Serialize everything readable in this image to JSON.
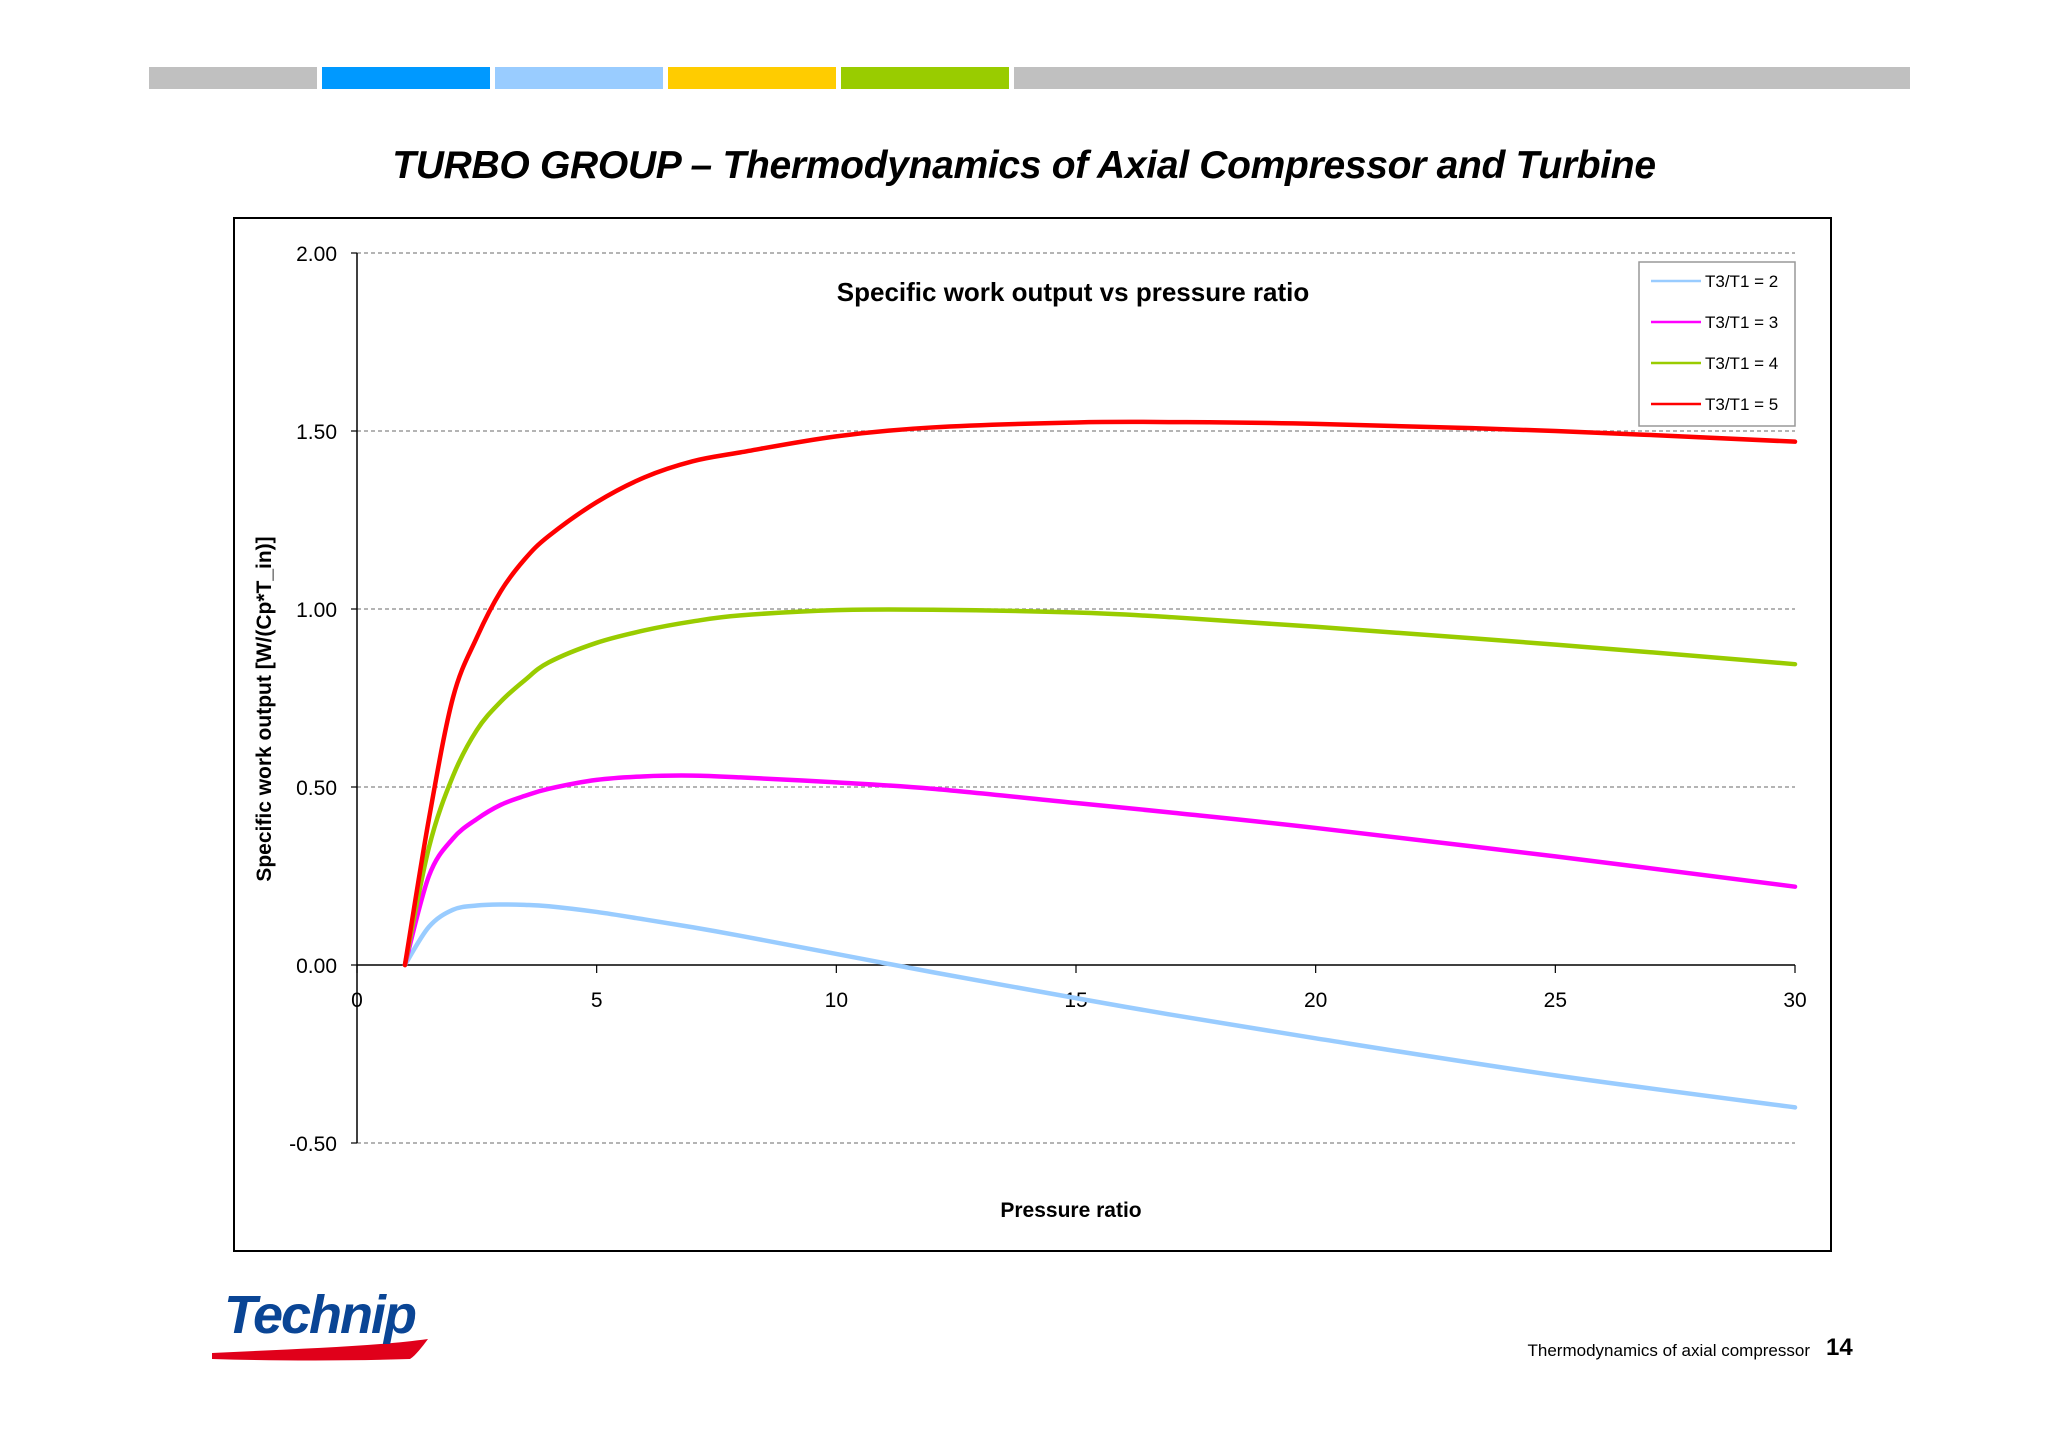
{
  "header": {
    "title": "TURBO GROUP – Thermodynamics of Axial Compressor and Turbine",
    "bar_colors": [
      "#c0c0c0",
      "#0099ff",
      "#99ccff",
      "#ffcc00",
      "#99cc00",
      "#c0c0c0"
    ]
  },
  "chart_data": {
    "type": "line",
    "title": "Specific work output vs pressure ratio",
    "xlabel": "Pressure ratio",
    "ylabel": "Specific work output [W/(Cp*T_in)]",
    "xlim": [
      0,
      30
    ],
    "ylim": [
      -0.5,
      2.0
    ],
    "x_ticks": [
      "0",
      "5",
      "10",
      "15",
      "20",
      "25",
      "30"
    ],
    "y_ticks": [
      "-0.50",
      "0.00",
      "0.50",
      "1.00",
      "1.50",
      "2.00"
    ],
    "grid": "horizontal-dashed",
    "legend_position": "top-right",
    "x": [
      1,
      1.5,
      2,
      2.5,
      3,
      3.5,
      4,
      5,
      6,
      7,
      8,
      10,
      12,
      15,
      17,
      20,
      25,
      30
    ],
    "series": [
      {
        "name": "T3/T1 = 2",
        "color": "#99ccff",
        "values": [
          0,
          0.107,
          0.155,
          0.167,
          0.17,
          0.169,
          0.165,
          0.149,
          0.128,
          0.106,
          0.082,
          0.031,
          -0.02,
          -0.093,
          -0.14,
          -0.206,
          -0.31,
          -0.4
        ]
      },
      {
        "name": "T3/T1 = 3",
        "color": "#ff00ff",
        "values": [
          0,
          0.25,
          0.355,
          0.41,
          0.45,
          0.475,
          0.495,
          0.52,
          0.53,
          0.532,
          0.527,
          0.513,
          0.495,
          0.455,
          0.428,
          0.385,
          0.305,
          0.22
        ]
      },
      {
        "name": "T3/T1 = 4",
        "color": "#99cc00",
        "values": [
          0,
          0.33,
          0.53,
          0.66,
          0.74,
          0.8,
          0.85,
          0.905,
          0.94,
          0.965,
          0.982,
          0.997,
          0.998,
          0.99,
          0.977,
          0.95,
          0.9,
          0.845
        ]
      },
      {
        "name": "T3/T1 = 5",
        "color": "#ff0000",
        "values": [
          0,
          0.41,
          0.75,
          0.92,
          1.05,
          1.14,
          1.205,
          1.3,
          1.37,
          1.415,
          1.44,
          1.485,
          1.51,
          1.524,
          1.525,
          1.52,
          1.5,
          1.47
        ]
      }
    ]
  },
  "footer": {
    "logo_text": "Technip",
    "caption": "Thermodynamics of  axial compressor",
    "page_number": "14"
  }
}
